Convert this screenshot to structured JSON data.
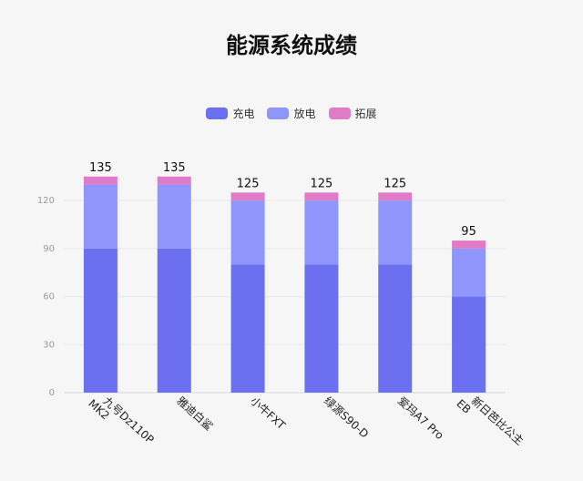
{
  "chart_data": {
    "type": "bar",
    "stacked": true,
    "title": "能源系统成绩",
    "categories": [
      [
        "九号Dz110P",
        "MK2"
      ],
      [
        "雅迪白鲨"
      ],
      [
        "小牛FXT"
      ],
      [
        "绿源S90-D"
      ],
      [
        "爱玛A7 Pro"
      ],
      [
        "新日芭比公主",
        "EB"
      ]
    ],
    "series": [
      {
        "name": "充电",
        "color": "#6a70ef",
        "values": [
          90,
          90,
          80,
          80,
          80,
          60
        ]
      },
      {
        "name": "放电",
        "color": "#8e96fb",
        "values": [
          40,
          40,
          40,
          40,
          40,
          30
        ]
      },
      {
        "name": "拓展",
        "color": "#e07bc6",
        "values": [
          5,
          5,
          5,
          5,
          5,
          5
        ]
      }
    ],
    "totals": [
      135,
      135,
      125,
      125,
      125,
      95
    ],
    "y_ticks": [
      0,
      30,
      60,
      90,
      120
    ],
    "ylim": [
      0,
      140
    ],
    "grid": true,
    "legend_position": "top-center"
  }
}
